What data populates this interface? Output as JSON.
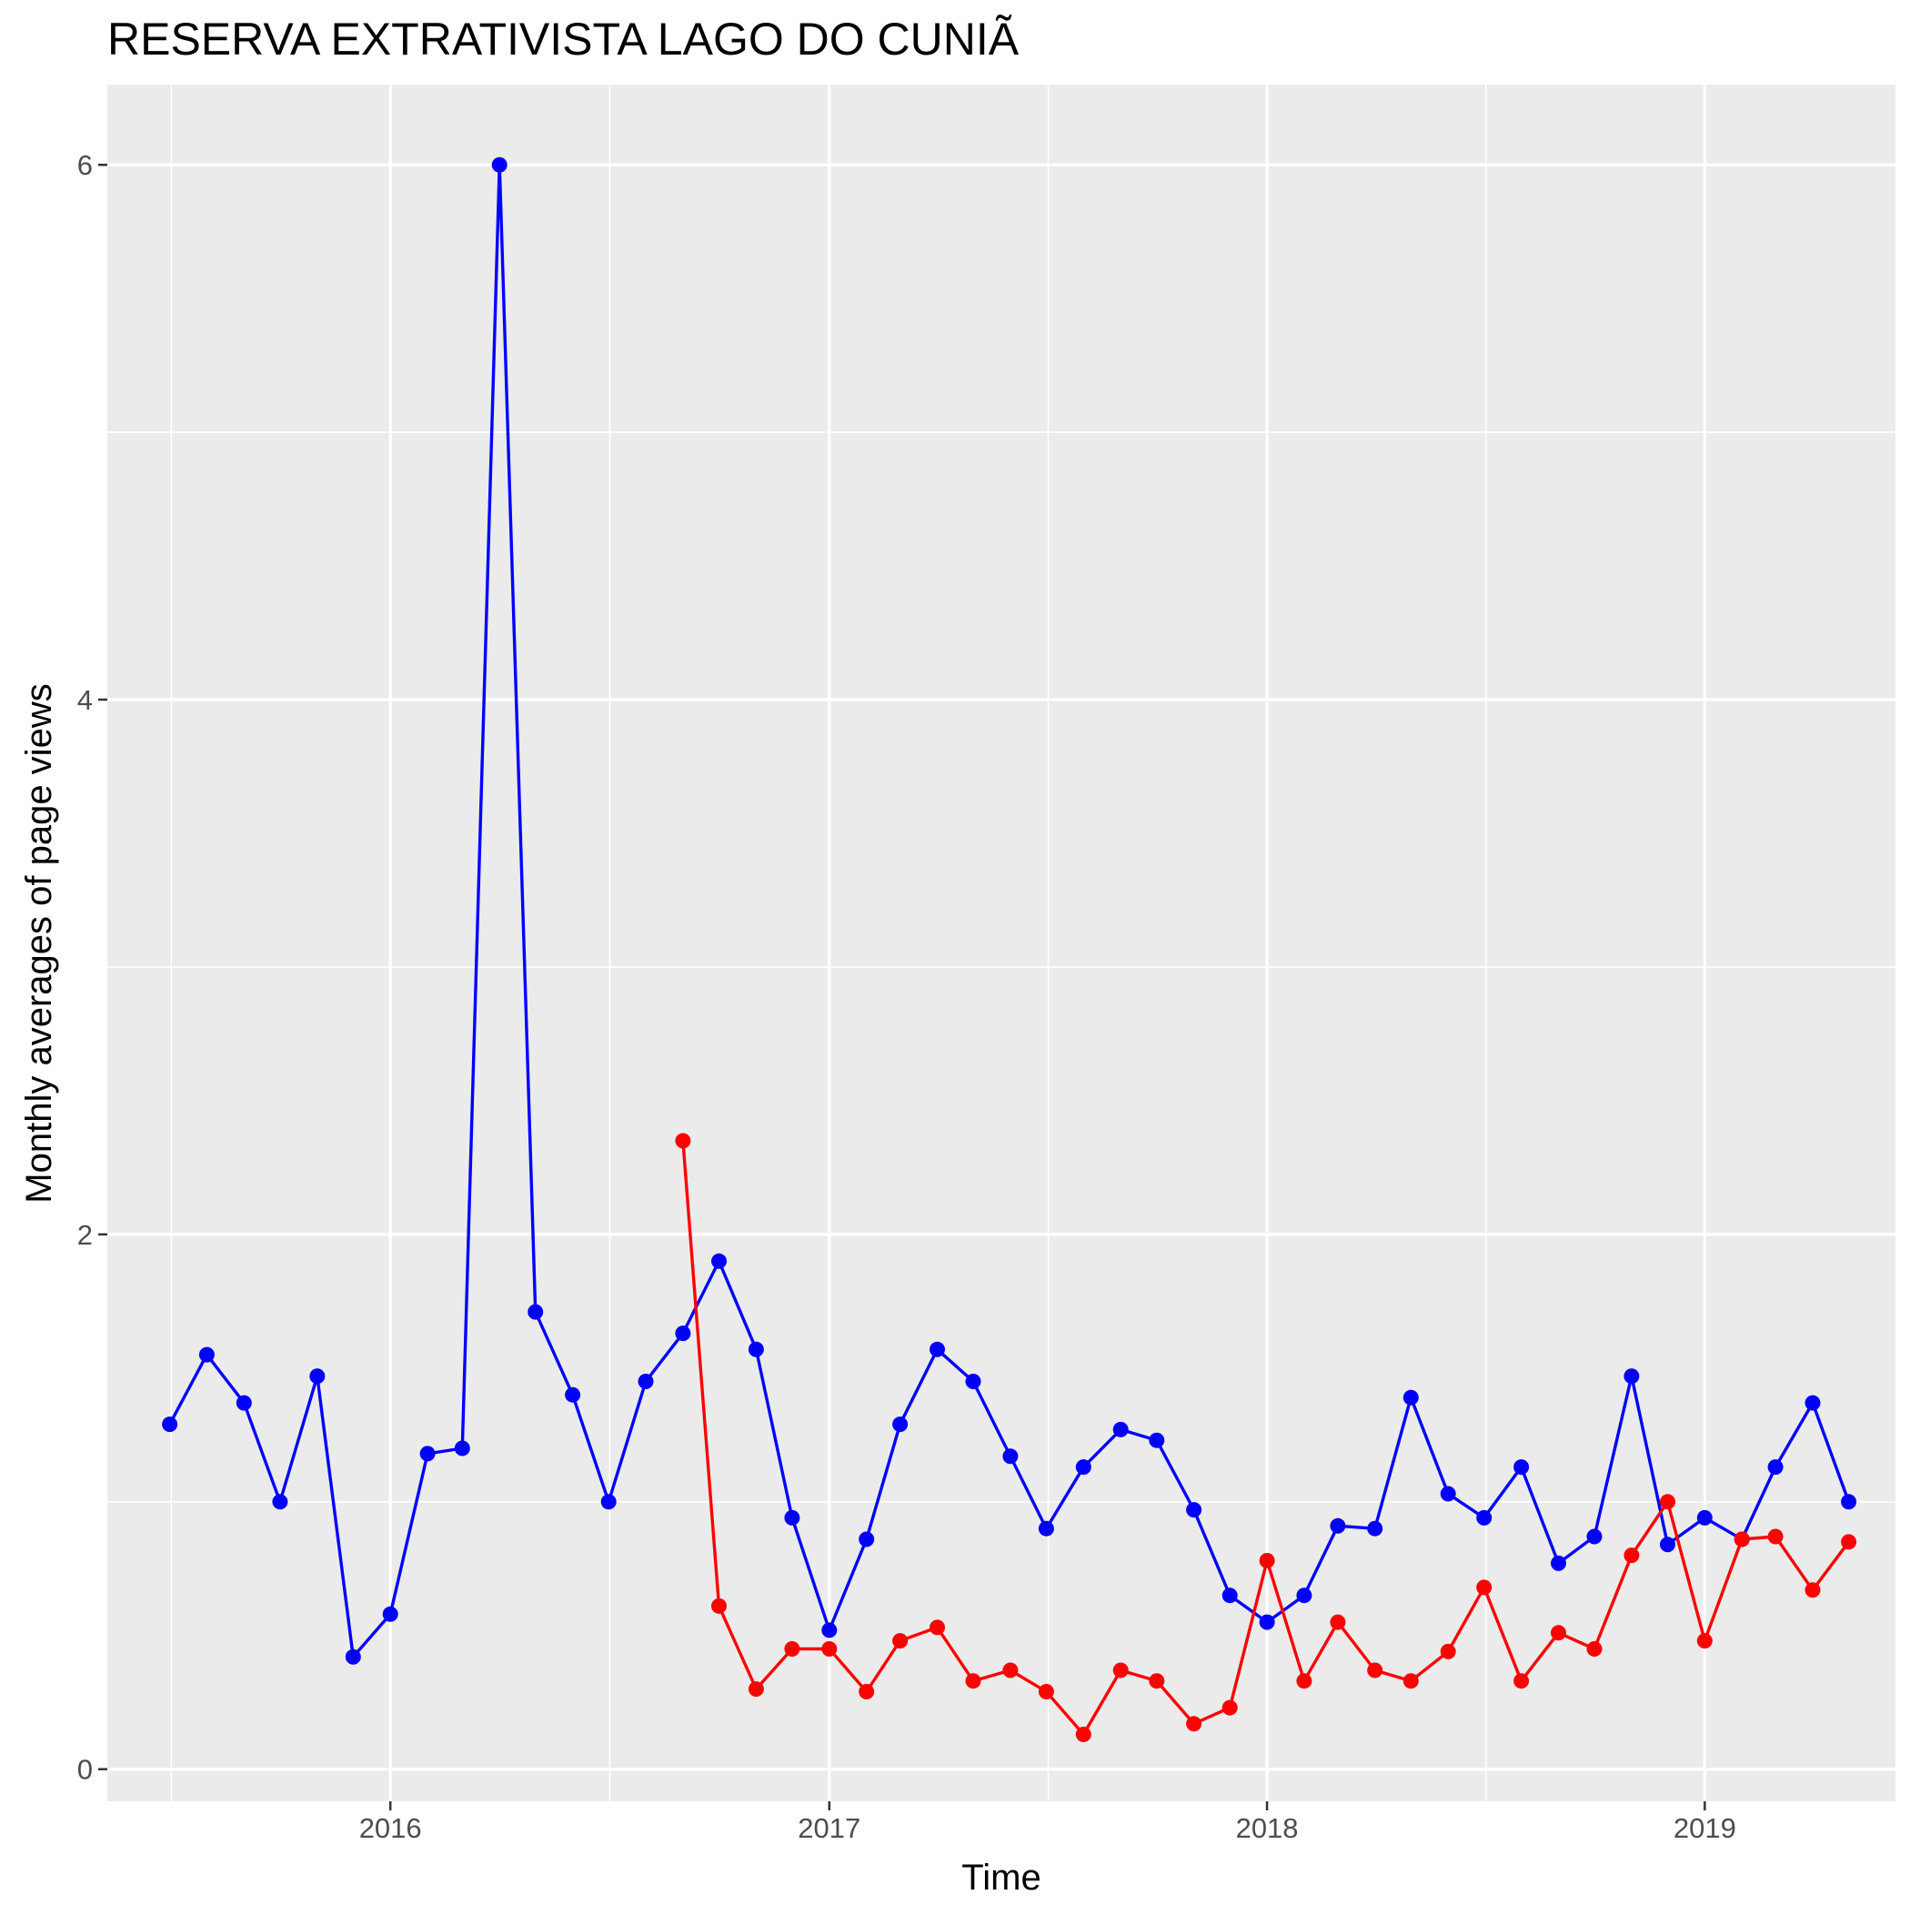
{
  "chart_data": {
    "type": "line",
    "title": "RESERVA EXTRATIVISTA LAGO DO CUNIÃ",
    "xlabel": "Time",
    "ylabel": "Monthly averages of page views",
    "xlim": [
      "2015-05-10",
      "2019-06-09"
    ],
    "ylim": [
      -0.12,
      6.3
    ],
    "x_ticks": [
      "2016",
      "2017",
      "2018",
      "2019"
    ],
    "x_tick_dates": [
      "2016-01-01",
      "2017-01-01",
      "2018-01-01",
      "2019-01-01"
    ],
    "y_ticks": [
      0,
      2,
      4,
      6
    ],
    "grid": true,
    "legend": "none",
    "series": [
      {
        "color": "#0000ff",
        "points": [
          [
            "2015-07-01",
            1.29
          ],
          [
            "2015-08-01",
            1.55
          ],
          [
            "2015-09-01",
            1.37
          ],
          [
            "2015-10-01",
            1.0
          ],
          [
            "2015-11-01",
            1.47
          ],
          [
            "2015-12-01",
            0.42
          ],
          [
            "2016-01-01",
            0.58
          ],
          [
            "2016-02-01",
            1.18
          ],
          [
            "2016-03-01",
            1.2
          ],
          [
            "2016-04-01",
            6.0
          ],
          [
            "2016-05-01",
            1.71
          ],
          [
            "2016-06-01",
            1.4
          ],
          [
            "2016-07-01",
            1.0
          ],
          [
            "2016-08-01",
            1.45
          ],
          [
            "2016-09-01",
            1.63
          ],
          [
            "2016-10-01",
            1.9
          ],
          [
            "2016-11-01",
            1.57
          ],
          [
            "2016-12-01",
            0.94
          ],
          [
            "2017-01-01",
            0.52
          ],
          [
            "2017-02-01",
            0.86
          ],
          [
            "2017-03-01",
            1.29
          ],
          [
            "2017-04-01",
            1.57
          ],
          [
            "2017-05-01",
            1.45
          ],
          [
            "2017-06-01",
            1.17
          ],
          [
            "2017-07-01",
            0.9
          ],
          [
            "2017-08-01",
            1.13
          ],
          [
            "2017-09-01",
            1.27
          ],
          [
            "2017-10-01",
            1.23
          ],
          [
            "2017-11-01",
            0.97
          ],
          [
            "2017-12-01",
            0.65
          ],
          [
            "2018-01-01",
            0.55
          ],
          [
            "2018-02-01",
            0.65
          ],
          [
            "2018-03-01",
            0.91
          ],
          [
            "2018-04-01",
            0.9
          ],
          [
            "2018-05-01",
            1.39
          ],
          [
            "2018-06-01",
            1.03
          ],
          [
            "2018-07-01",
            0.94
          ],
          [
            "2018-08-01",
            1.13
          ],
          [
            "2018-09-01",
            0.77
          ],
          [
            "2018-10-01",
            0.87
          ],
          [
            "2018-11-01",
            1.47
          ],
          [
            "2018-12-01",
            0.84
          ],
          [
            "2019-01-01",
            0.94
          ],
          [
            "2019-02-01",
            0.86
          ],
          [
            "2019-03-01",
            1.13
          ],
          [
            "2019-04-01",
            1.37
          ],
          [
            "2019-05-01",
            1.0
          ]
        ]
      },
      {
        "color": "#ff0000",
        "points": [
          [
            "2016-09-01",
            2.35
          ],
          [
            "2016-10-01",
            0.61
          ],
          [
            "2016-11-01",
            0.3
          ],
          [
            "2016-12-01",
            0.45
          ],
          [
            "2017-01-01",
            0.45
          ],
          [
            "2017-02-01",
            0.29
          ],
          [
            "2017-03-01",
            0.48
          ],
          [
            "2017-04-01",
            0.53
          ],
          [
            "2017-05-01",
            0.33
          ],
          [
            "2017-06-01",
            0.37
          ],
          [
            "2017-07-01",
            0.29
          ],
          [
            "2017-08-01",
            0.13
          ],
          [
            "2017-09-01",
            0.37
          ],
          [
            "2017-10-01",
            0.33
          ],
          [
            "2017-11-01",
            0.17
          ],
          [
            "2017-12-01",
            0.23
          ],
          [
            "2018-01-01",
            0.78
          ],
          [
            "2018-02-01",
            0.33
          ],
          [
            "2018-03-01",
            0.55
          ],
          [
            "2018-04-01",
            0.37
          ],
          [
            "2018-05-01",
            0.33
          ],
          [
            "2018-06-01",
            0.44
          ],
          [
            "2018-07-01",
            0.68
          ],
          [
            "2018-08-01",
            0.33
          ],
          [
            "2018-09-01",
            0.51
          ],
          [
            "2018-10-01",
            0.45
          ],
          [
            "2018-11-01",
            0.8
          ],
          [
            "2018-12-01",
            1.0
          ],
          [
            "2019-01-01",
            0.48
          ],
          [
            "2019-02-01",
            0.86
          ],
          [
            "2019-03-01",
            0.87
          ],
          [
            "2019-04-01",
            0.67
          ],
          [
            "2019-05-01",
            0.85
          ]
        ]
      }
    ]
  }
}
